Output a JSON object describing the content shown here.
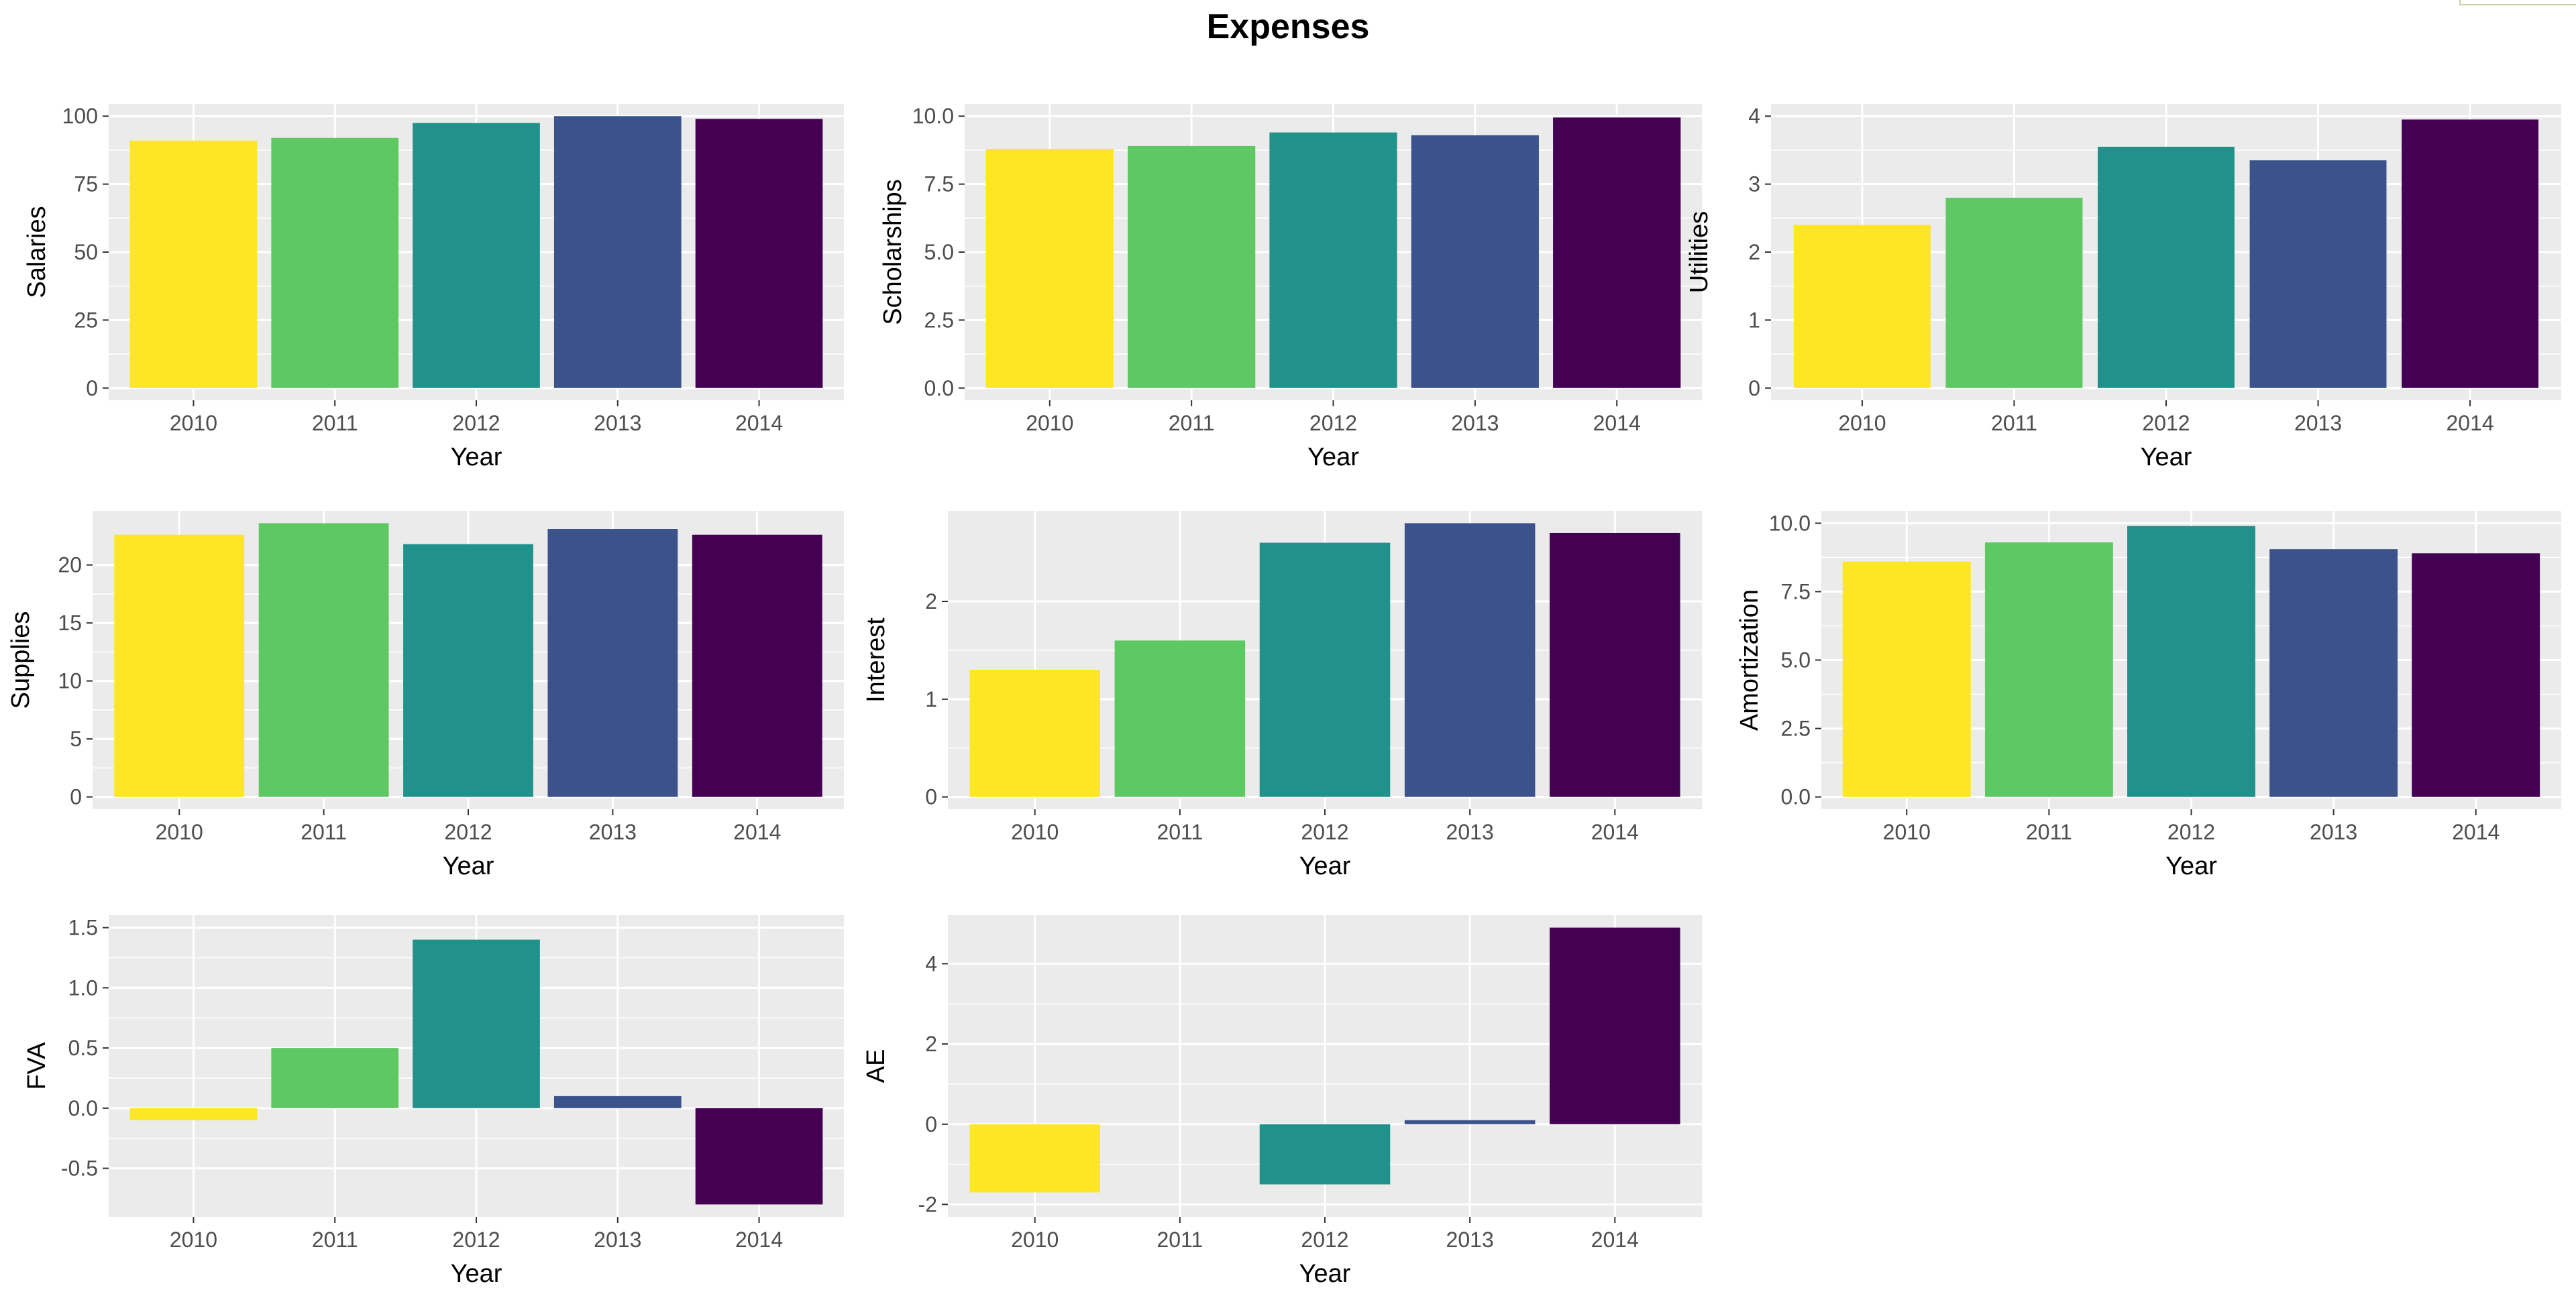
{
  "title": "Expenses",
  "colors": [
    "#fde725",
    "#5ec962",
    "#21918c",
    "#3b528b",
    "#440154"
  ],
  "panel_background": "#ebebeb",
  "grid_color": "#ffffff",
  "chart_data": [
    {
      "type": "bar",
      "categories": [
        "2010",
        "2011",
        "2012",
        "2013",
        "2014"
      ],
      "values": [
        91,
        92,
        97.5,
        100,
        99
      ],
      "xlabel": "Year",
      "ylabel": "Salaries",
      "ylim": [
        0,
        100
      ],
      "yticks": [
        0,
        25,
        50,
        75,
        100
      ],
      "yticklabels": [
        "0",
        "25",
        "50",
        "75",
        "100"
      ],
      "grid": true,
      "legend": "none"
    },
    {
      "type": "bar",
      "categories": [
        "2010",
        "2011",
        "2012",
        "2013",
        "2014"
      ],
      "values": [
        8.8,
        8.9,
        9.4,
        9.3,
        9.95
      ],
      "xlabel": "Year",
      "ylabel": "Scholarships",
      "ylim": [
        0,
        10
      ],
      "yticks": [
        0,
        2.5,
        5,
        7.5,
        10
      ],
      "yticklabels": [
        "0.0",
        "2.5",
        "5.0",
        "7.5",
        "10.0"
      ],
      "grid": true,
      "legend": "none"
    },
    {
      "type": "bar",
      "categories": [
        "2010",
        "2011",
        "2012",
        "2013",
        "2014"
      ],
      "values": [
        2.4,
        2.8,
        3.55,
        3.35,
        3.95
      ],
      "xlabel": "Year",
      "ylabel": "Utilities",
      "ylim": [
        0,
        4
      ],
      "yticks": [
        0,
        1,
        2,
        3,
        4
      ],
      "yticklabels": [
        "0",
        "1",
        "2",
        "3",
        "4"
      ],
      "grid": true,
      "legend": "none"
    },
    {
      "type": "bar",
      "categories": [
        "2010",
        "2011",
        "2012",
        "2013",
        "2014"
      ],
      "values": [
        22.6,
        23.6,
        21.8,
        23.1,
        22.6
      ],
      "xlabel": "Year",
      "ylabel": "Supplies",
      "ylim": [
        0,
        23.6
      ],
      "yticks": [
        0,
        5,
        10,
        15,
        20
      ],
      "yticklabels": [
        "0",
        "5",
        "10",
        "15",
        "20"
      ],
      "grid": true,
      "legend": "none"
    },
    {
      "type": "bar",
      "categories": [
        "2010",
        "2011",
        "2012",
        "2013",
        "2014"
      ],
      "values": [
        1.3,
        1.6,
        2.6,
        2.8,
        2.7
      ],
      "xlabel": "Year",
      "ylabel": "Interest",
      "ylim": [
        0,
        2.8
      ],
      "yticks": [
        0,
        1,
        2
      ],
      "yticklabels": [
        "0",
        "1",
        "2"
      ],
      "grid": true,
      "legend": "none"
    },
    {
      "type": "bar",
      "categories": [
        "2010",
        "2011",
        "2012",
        "2013",
        "2014"
      ],
      "values": [
        8.6,
        9.3,
        9.9,
        9.05,
        8.9
      ],
      "xlabel": "Year",
      "ylabel": "Amortization",
      "ylim": [
        0,
        10
      ],
      "yticks": [
        0,
        2.5,
        5,
        7.5,
        10
      ],
      "yticklabels": [
        "0.0",
        "2.5",
        "5.0",
        "7.5",
        "10.0"
      ],
      "grid": true,
      "legend": "none"
    },
    {
      "type": "bar",
      "categories": [
        "2010",
        "2011",
        "2012",
        "2013",
        "2014"
      ],
      "values": [
        -0.1,
        0.5,
        1.4,
        0.1,
        -0.8
      ],
      "xlabel": "Year",
      "ylabel": "FVA",
      "ylim": [
        -0.8,
        1.4
      ],
      "yticks": [
        -0.5,
        0,
        0.5,
        1,
        1.5
      ],
      "yticklabels": [
        "-0.5",
        "0.0",
        "0.5",
        "1.0",
        "1.5"
      ],
      "grid": true,
      "legend": "none"
    },
    {
      "type": "bar",
      "categories": [
        "2010",
        "2011",
        "2012",
        "2013",
        "2014"
      ],
      "values": [
        -1.7,
        0,
        -1.5,
        0.1,
        4.9
      ],
      "xlabel": "Year",
      "ylabel": "AE",
      "ylim": [
        -1.7,
        4.9
      ],
      "yticks": [
        -2,
        0,
        2,
        4
      ],
      "yticklabels": [
        "-2",
        "0",
        "2",
        "4"
      ],
      "grid": true,
      "legend": "none"
    }
  ]
}
